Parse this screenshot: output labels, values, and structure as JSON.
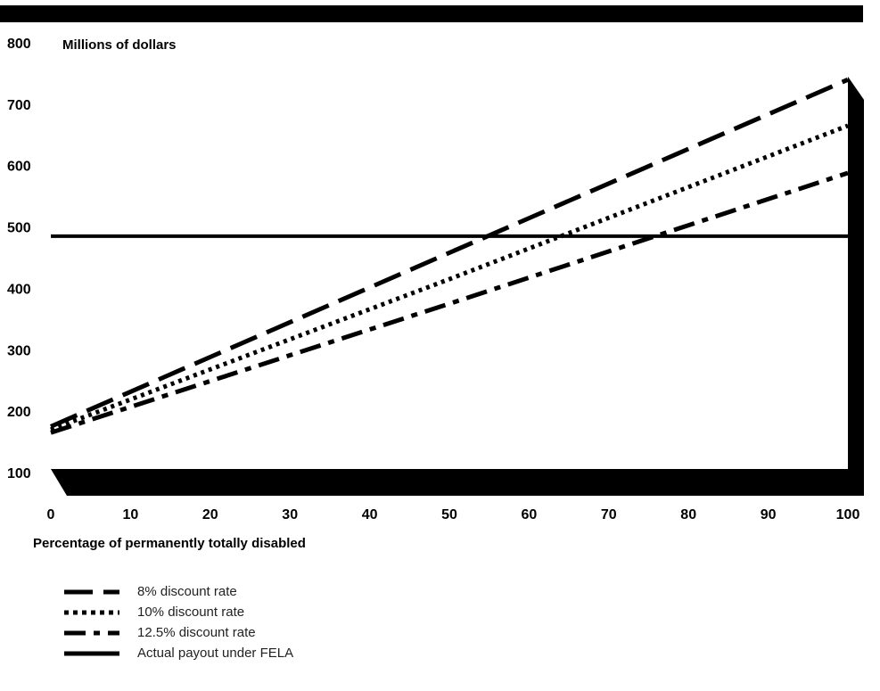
{
  "chart_data": {
    "type": "line",
    "ylabel": "Millions of dollars",
    "xlabel": "Percentage of permanently totally disabled",
    "xlim": [
      0,
      100
    ],
    "ylim": [
      100,
      800
    ],
    "x_ticks": [
      0,
      10,
      20,
      30,
      40,
      50,
      60,
      70,
      80,
      90,
      100
    ],
    "y_ticks": [
      100,
      200,
      300,
      400,
      500,
      600,
      700,
      800
    ],
    "series": [
      {
        "name": "8% discount rate",
        "style": "long-dash",
        "x": [
          0,
          50,
          100
        ],
        "y": [
          175,
          458,
          740
        ]
      },
      {
        "name": "10% discount rate",
        "style": "dotted",
        "x": [
          0,
          50,
          100
        ],
        "y": [
          170,
          415,
          665
        ]
      },
      {
        "name": "12.5% discount rate",
        "style": "dash-dot",
        "x": [
          0,
          50,
          100
        ],
        "y": [
          165,
          375,
          588
        ]
      },
      {
        "name": "Actual payout under FELA",
        "style": "solid",
        "x": [
          0,
          100
        ],
        "y": [
          485,
          485
        ]
      }
    ],
    "grid": false,
    "legend_position": "bottom-left",
    "color": "#000000"
  }
}
